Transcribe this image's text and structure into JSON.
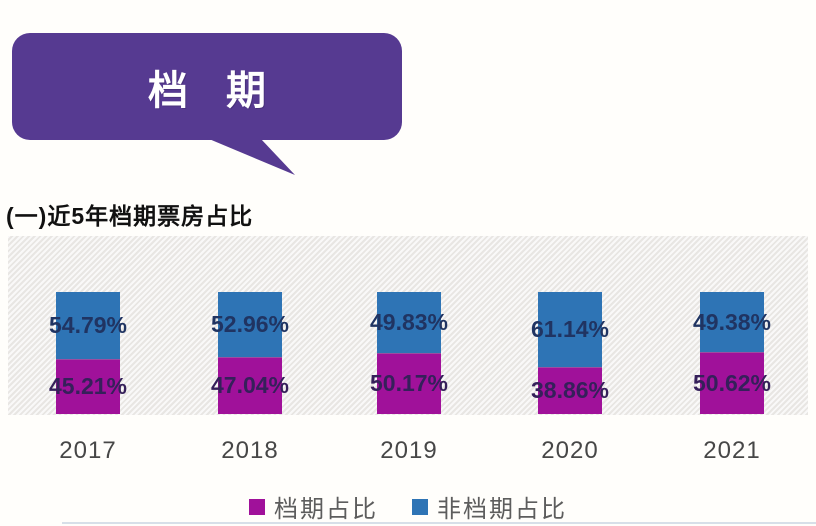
{
  "header": {
    "bubble_label": "档 期",
    "bubble_color": "#563a91"
  },
  "section": {
    "title": "(一)近5年档期票房占比"
  },
  "chart_data": {
    "type": "bar",
    "stacked": true,
    "title": "",
    "xlabel": "",
    "ylabel": "",
    "ylim": [
      0,
      100
    ],
    "grid": false,
    "legend_position": "bottom",
    "value_suffix": "%",
    "categories": [
      "2017",
      "2018",
      "2019",
      "2020",
      "2021"
    ],
    "series": [
      {
        "name": "档期占比",
        "color": "#a0119a",
        "label_color": "#35205a",
        "values": [
          45.21,
          47.04,
          50.17,
          38.86,
          50.62
        ],
        "labels": [
          "45.21%",
          "47.04%",
          "50.17%",
          "38.86%",
          "50.62%"
        ]
      },
      {
        "name": "非档期占比",
        "color": "#2e74b5",
        "label_color": "#203462",
        "values": [
          54.79,
          52.96,
          49.83,
          61.14,
          49.38
        ],
        "labels": [
          "54.79%",
          "52.96%",
          "49.83%",
          "61.14%",
          "49.38%"
        ]
      }
    ]
  }
}
